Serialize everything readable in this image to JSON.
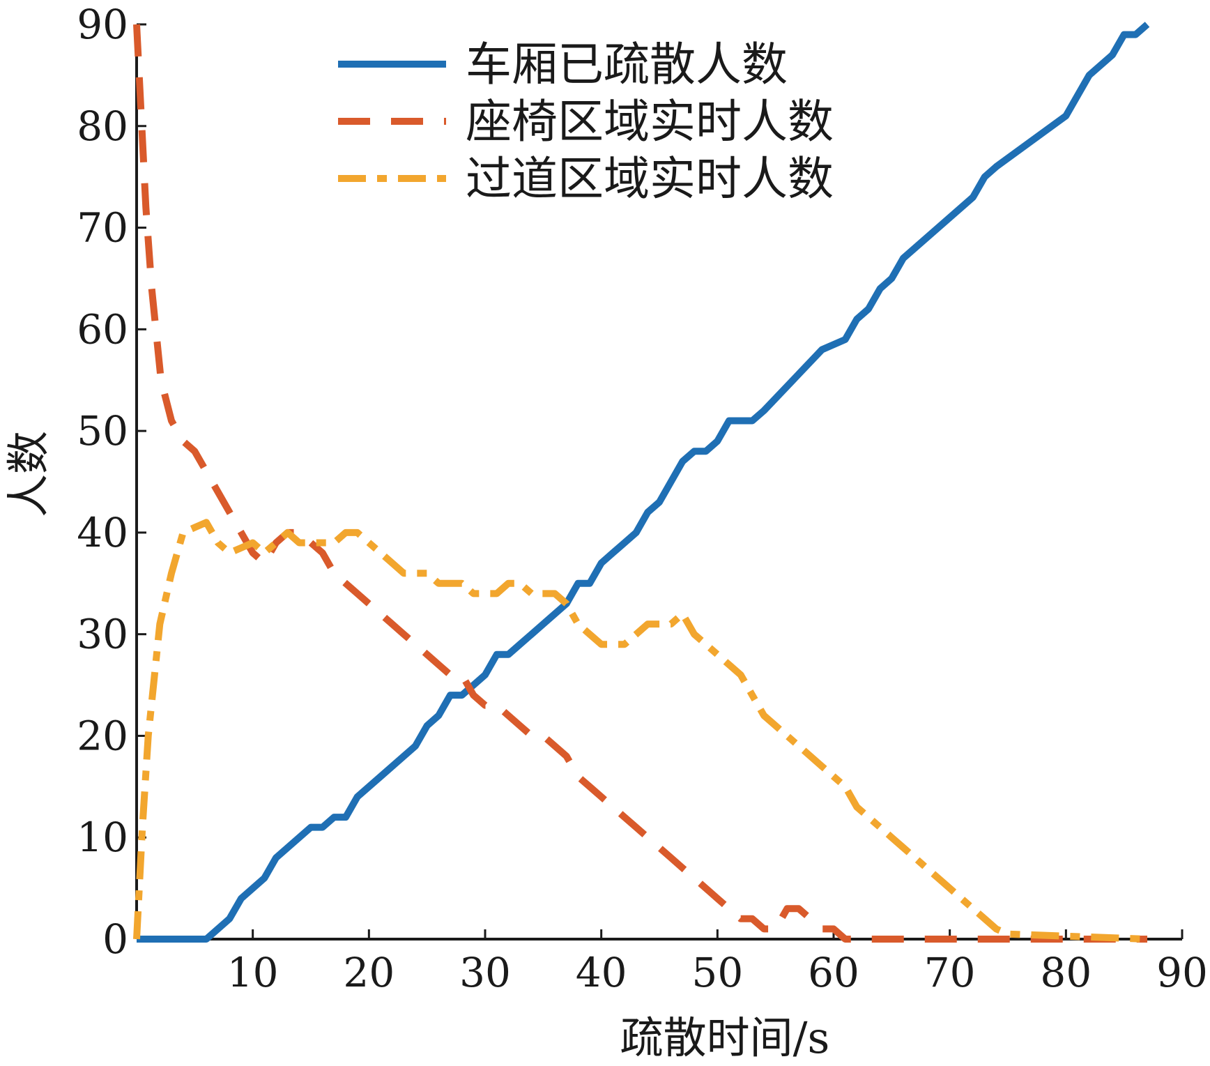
{
  "chart_data": {
    "type": "line",
    "xlabel": "疏散时间/s",
    "ylabel": "人数",
    "xlim": [
      0,
      90
    ],
    "ylim": [
      0,
      90
    ],
    "xticks": [
      10,
      20,
      30,
      40,
      50,
      60,
      70,
      80,
      90
    ],
    "yticks": [
      0,
      10,
      20,
      30,
      40,
      50,
      60,
      70,
      80,
      90
    ],
    "grid": false,
    "legend_position": "top-center",
    "series": [
      {
        "name": "车厢已疏散人数",
        "color": "#1f6fb4",
        "style": "solid",
        "points": [
          [
            0,
            0
          ],
          [
            6,
            0
          ],
          [
            8,
            2
          ],
          [
            9,
            4
          ],
          [
            11,
            6
          ],
          [
            12,
            8
          ],
          [
            14,
            10
          ],
          [
            15,
            11
          ],
          [
            16,
            11
          ],
          [
            17,
            12
          ],
          [
            18,
            12
          ],
          [
            19,
            14
          ],
          [
            21,
            16
          ],
          [
            23,
            18
          ],
          [
            24,
            19
          ],
          [
            25,
            21
          ],
          [
            26,
            22
          ],
          [
            27,
            24
          ],
          [
            28,
            24
          ],
          [
            29,
            25
          ],
          [
            30,
            26
          ],
          [
            31,
            28
          ],
          [
            32,
            28
          ],
          [
            33,
            29
          ],
          [
            34,
            30
          ],
          [
            35,
            31
          ],
          [
            37,
            33
          ],
          [
            38,
            35
          ],
          [
            39,
            35
          ],
          [
            40,
            37
          ],
          [
            41,
            38
          ],
          [
            42,
            39
          ],
          [
            43,
            40
          ],
          [
            44,
            42
          ],
          [
            45,
            43
          ],
          [
            47,
            47
          ],
          [
            48,
            48
          ],
          [
            49,
            48
          ],
          [
            50,
            49
          ],
          [
            51,
            51
          ],
          [
            53,
            51
          ],
          [
            54,
            52
          ],
          [
            59,
            58
          ],
          [
            61,
            59
          ],
          [
            62,
            61
          ],
          [
            63,
            62
          ],
          [
            64,
            64
          ],
          [
            65,
            65
          ],
          [
            66,
            67
          ],
          [
            72,
            73
          ],
          [
            73,
            75
          ],
          [
            74,
            76
          ],
          [
            80,
            81
          ],
          [
            81,
            83
          ],
          [
            82,
            85
          ],
          [
            84,
            87
          ],
          [
            85,
            89
          ],
          [
            86,
            89
          ],
          [
            87,
            90
          ]
        ]
      },
      {
        "name": "座椅区域实时人数",
        "color": "#d95a2b",
        "style": "dashed",
        "points": [
          [
            0,
            90
          ],
          [
            0.8,
            72
          ],
          [
            1.3,
            64
          ],
          [
            2.1,
            55
          ],
          [
            3,
            51
          ],
          [
            4,
            49
          ],
          [
            5,
            48
          ],
          [
            6,
            46
          ],
          [
            7,
            44
          ],
          [
            8,
            42
          ],
          [
            9,
            40
          ],
          [
            10,
            38
          ],
          [
            11,
            37
          ],
          [
            12,
            39
          ],
          [
            13,
            40
          ],
          [
            14,
            40
          ],
          [
            15,
            39
          ],
          [
            16,
            38
          ],
          [
            17,
            36
          ],
          [
            18,
            35
          ],
          [
            19,
            34
          ],
          [
            20,
            33
          ],
          [
            21,
            32
          ],
          [
            22,
            31
          ],
          [
            23,
            30
          ],
          [
            24,
            29
          ],
          [
            25,
            28
          ],
          [
            26,
            27
          ],
          [
            27,
            26
          ],
          [
            28,
            26
          ],
          [
            29,
            24
          ],
          [
            30,
            23
          ],
          [
            31,
            23
          ],
          [
            32,
            22
          ],
          [
            33,
            21
          ],
          [
            34,
            20
          ],
          [
            35,
            20
          ],
          [
            36,
            19
          ],
          [
            37,
            18
          ],
          [
            38,
            16
          ],
          [
            39,
            15
          ],
          [
            40,
            14
          ],
          [
            41,
            13
          ],
          [
            42,
            12
          ],
          [
            43,
            11
          ],
          [
            44,
            10
          ],
          [
            45,
            9
          ],
          [
            46,
            8
          ],
          [
            47,
            7
          ],
          [
            48,
            6
          ],
          [
            49,
            5
          ],
          [
            50,
            4
          ],
          [
            51,
            3
          ],
          [
            52,
            2
          ],
          [
            53,
            2
          ],
          [
            54,
            1
          ],
          [
            55,
            1
          ],
          [
            56,
            3
          ],
          [
            57,
            3
          ],
          [
            58,
            2
          ],
          [
            59,
            1
          ],
          [
            60,
            1
          ],
          [
            61,
            0
          ],
          [
            62,
            0
          ],
          [
            63,
            0
          ],
          [
            64,
            0
          ],
          [
            65,
            0
          ],
          [
            66,
            0
          ],
          [
            67,
            0
          ],
          [
            68,
            0
          ],
          [
            69,
            0
          ],
          [
            70,
            0
          ],
          [
            71,
            0
          ],
          [
            72,
            0
          ],
          [
            73,
            0
          ],
          [
            74,
            0
          ],
          [
            75,
            0
          ],
          [
            76,
            0
          ],
          [
            77,
            0
          ],
          [
            78,
            0
          ],
          [
            79,
            0
          ],
          [
            80,
            0
          ],
          [
            81,
            0
          ],
          [
            82,
            0
          ],
          [
            83,
            0
          ],
          [
            84,
            0
          ],
          [
            85,
            0
          ],
          [
            86,
            0
          ],
          [
            87,
            0
          ]
        ]
      },
      {
        "name": "过道区域实时人数",
        "color": "#f2a62e",
        "style": "dashdot",
        "points": [
          [
            0,
            0
          ],
          [
            0.5,
            11
          ],
          [
            1,
            20
          ],
          [
            2,
            31
          ],
          [
            3,
            36
          ],
          [
            4,
            40
          ],
          [
            5,
            40.5
          ],
          [
            6,
            41
          ],
          [
            7,
            39
          ],
          [
            8,
            38
          ],
          [
            9,
            38.5
          ],
          [
            10,
            39
          ],
          [
            11,
            38
          ],
          [
            12,
            39
          ],
          [
            13,
            40
          ],
          [
            14,
            39
          ],
          [
            15,
            39
          ],
          [
            16,
            39
          ],
          [
            17,
            39
          ],
          [
            18,
            40
          ],
          [
            19,
            40
          ],
          [
            20,
            39
          ],
          [
            21,
            38
          ],
          [
            22,
            37
          ],
          [
            23,
            36
          ],
          [
            24,
            36
          ],
          [
            25,
            36
          ],
          [
            26,
            35
          ],
          [
            27,
            35
          ],
          [
            28,
            35
          ],
          [
            29,
            34
          ],
          [
            30,
            34
          ],
          [
            31,
            34
          ],
          [
            32,
            35
          ],
          [
            33,
            35
          ],
          [
            34,
            34
          ],
          [
            35,
            34
          ],
          [
            36,
            34
          ],
          [
            37,
            33
          ],
          [
            38,
            31
          ],
          [
            39,
            30
          ],
          [
            40,
            29
          ],
          [
            41,
            29
          ],
          [
            42,
            29
          ],
          [
            43,
            30
          ],
          [
            44,
            31
          ],
          [
            45,
            31
          ],
          [
            46,
            31
          ],
          [
            47,
            32
          ],
          [
            48,
            30
          ],
          [
            49,
            29
          ],
          [
            50,
            28
          ],
          [
            51,
            27
          ],
          [
            52,
            26
          ],
          [
            53,
            24
          ],
          [
            54,
            22
          ],
          [
            55,
            21
          ],
          [
            56,
            20
          ],
          [
            57,
            19
          ],
          [
            58,
            18
          ],
          [
            59,
            17
          ],
          [
            60,
            16
          ],
          [
            61,
            15
          ],
          [
            62,
            13
          ],
          [
            63,
            12
          ],
          [
            64,
            11
          ],
          [
            65,
            10
          ],
          [
            66,
            9
          ],
          [
            67,
            8
          ],
          [
            68,
            7
          ],
          [
            69,
            6
          ],
          [
            70,
            5
          ],
          [
            71,
            4
          ],
          [
            72,
            3
          ],
          [
            73,
            2
          ],
          [
            74,
            1
          ],
          [
            75,
            0.5
          ],
          [
            87,
            0
          ]
        ]
      }
    ]
  }
}
